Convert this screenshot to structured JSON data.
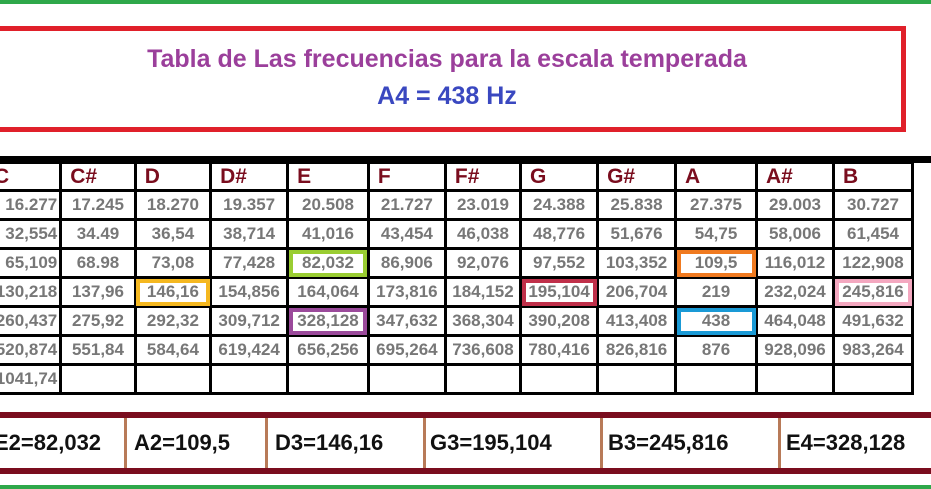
{
  "title": "Tabla de  Las frecuencias para la escala temperada",
  "subtitle": "A4 = 438 Hz",
  "table": {
    "headers": [
      "C",
      "C#",
      "D",
      "D#",
      "E",
      "F",
      "F#",
      "G",
      "G#",
      "A",
      "A#",
      "B"
    ],
    "rows": [
      [
        "16.277",
        "17.245",
        "18.270",
        "19.357",
        "20.508",
        "21.727",
        "23.019",
        "24.388",
        "25.838",
        "27.375",
        "29.003",
        "30.727"
      ],
      [
        "32,554",
        "34.49",
        "36,54",
        "38,714",
        "41,016",
        "43,454",
        "46,038",
        "48,776",
        "51,676",
        "54,75",
        "58,006",
        "61,454"
      ],
      [
        "65,109",
        "68.98",
        "73,08",
        "77,428",
        "82,032",
        "86,906",
        "92,076",
        "97,552",
        "103,352",
        "109,5",
        "116,012",
        "122,908"
      ],
      [
        "130,218",
        "137,96",
        "146,16",
        "154,856",
        "164,064",
        "173,816",
        "184,152",
        "195,104",
        "206,704",
        "219",
        "232,024",
        "245,816"
      ],
      [
        "260,437",
        "275,92",
        "292,32",
        "309,712",
        "328,128",
        "347,632",
        "368,304",
        "390,208",
        "413,408",
        "438",
        "464,048",
        "491,632"
      ],
      [
        "520,874",
        "551,84",
        "584,64",
        "619,424",
        "656,256",
        "695,264",
        "736,608",
        "780,416",
        "826,816",
        "876",
        "928,096",
        "983,264"
      ],
      [
        "1041,74",
        "",
        "",
        "",
        "",
        "",
        "",
        "",
        "",
        "",
        "",
        ""
      ]
    ],
    "highlights": [
      {
        "row": 2,
        "col": 4,
        "color": "#9acd32"
      },
      {
        "row": 2,
        "col": 9,
        "color": "#f07a20"
      },
      {
        "row": 3,
        "col": 2,
        "color": "#f5b820"
      },
      {
        "row": 3,
        "col": 7,
        "color": "#c0304a"
      },
      {
        "row": 3,
        "col": 11,
        "color": "#f4a8c0"
      },
      {
        "row": 4,
        "col": 4,
        "color": "#9b4a9b"
      },
      {
        "row": 4,
        "col": 9,
        "color": "#1a9ad6"
      }
    ]
  },
  "strings": [
    "E2=82,032",
    "A2=109,5",
    "D3=146,16",
    "G3=195,104",
    "B3=245,816",
    "E4=328,128"
  ]
}
